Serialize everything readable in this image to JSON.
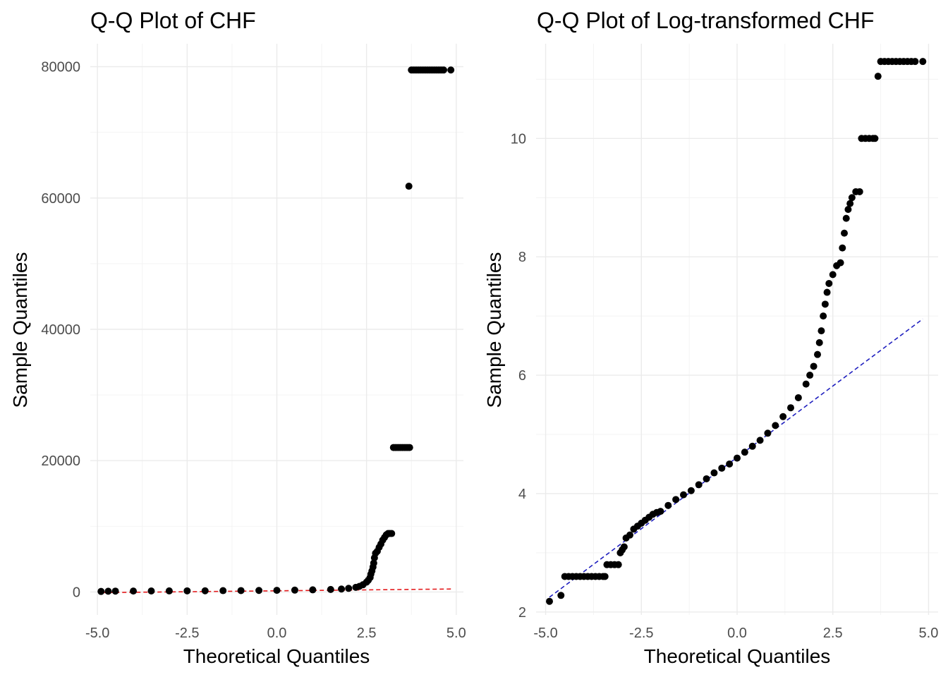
{
  "chart_data": [
    {
      "type": "scatter",
      "title": "Q-Q Plot of CHF",
      "xlabel": "Theoretical Quantiles",
      "ylabel": "Sample Quantiles",
      "xlim": [
        -5.2,
        5.2
      ],
      "ylim": [
        -3500,
        83500
      ],
      "xticks": [
        -5.0,
        -2.5,
        0.0,
        2.5,
        5.0
      ],
      "xtick_labels": [
        "-5.0",
        "-2.5",
        "0.0",
        "2.5",
        "5.0"
      ],
      "yticks": [
        0,
        20000,
        40000,
        60000,
        80000
      ],
      "ytick_labels": [
        "0",
        "20000",
        "40000",
        "60000",
        "80000"
      ],
      "grid": true,
      "reference_line": {
        "color": "#e41a1c",
        "style": "dashed",
        "points": [
          [
            -4.9,
            -100
          ],
          [
            4.85,
            450
          ]
        ]
      },
      "point_color": "#000000",
      "points": [
        [
          -4.9,
          80
        ],
        [
          -4.7,
          110
        ],
        [
          -4.5,
          130
        ],
        [
          -4.0,
          140
        ],
        [
          -3.5,
          150
        ],
        [
          -3.0,
          160
        ],
        [
          -2.5,
          170
        ],
        [
          -2.0,
          180
        ],
        [
          -1.5,
          200
        ],
        [
          -1.0,
          210
        ],
        [
          -0.5,
          230
        ],
        [
          0.0,
          250
        ],
        [
          0.5,
          280
        ],
        [
          1.0,
          320
        ],
        [
          1.5,
          380
        ],
        [
          1.8,
          450
        ],
        [
          2.0,
          550
        ],
        [
          2.2,
          700
        ],
        [
          2.3,
          850
        ],
        [
          2.4,
          1100
        ],
        [
          2.5,
          1500
        ],
        [
          2.55,
          1800
        ],
        [
          2.6,
          2200
        ],
        [
          2.62,
          2700
        ],
        [
          2.65,
          3200
        ],
        [
          2.68,
          3800
        ],
        [
          2.7,
          4400
        ],
        [
          2.72,
          5200
        ],
        [
          2.75,
          5900
        ],
        [
          2.8,
          6200
        ],
        [
          2.85,
          6800
        ],
        [
          2.9,
          7300
        ],
        [
          2.95,
          7900
        ],
        [
          3.0,
          8300
        ],
        [
          3.05,
          8700
        ],
        [
          3.1,
          8900
        ],
        [
          3.15,
          8900
        ],
        [
          3.2,
          8900
        ],
        [
          3.25,
          22000
        ],
        [
          3.3,
          22000
        ],
        [
          3.35,
          22000
        ],
        [
          3.4,
          22000
        ],
        [
          3.45,
          22000
        ],
        [
          3.5,
          22000
        ],
        [
          3.55,
          22000
        ],
        [
          3.6,
          22000
        ],
        [
          3.65,
          22000
        ],
        [
          3.7,
          22000
        ],
        [
          3.68,
          61800
        ],
        [
          3.75,
          79500
        ],
        [
          3.8,
          79500
        ],
        [
          3.85,
          79500
        ],
        [
          3.9,
          79500
        ],
        [
          3.95,
          79500
        ],
        [
          4.0,
          79500
        ],
        [
          4.05,
          79500
        ],
        [
          4.1,
          79500
        ],
        [
          4.15,
          79500
        ],
        [
          4.2,
          79500
        ],
        [
          4.25,
          79500
        ],
        [
          4.3,
          79500
        ],
        [
          4.35,
          79500
        ],
        [
          4.4,
          79500
        ],
        [
          4.45,
          79500
        ],
        [
          4.5,
          79500
        ],
        [
          4.55,
          79500
        ],
        [
          4.6,
          79500
        ],
        [
          4.65,
          79500
        ],
        [
          4.85,
          79500
        ]
      ]
    },
    {
      "type": "scatter",
      "title": "Q-Q Plot of Log-transformed CHF",
      "xlabel": "Theoretical Quantiles",
      "ylabel": "Sample Quantiles",
      "xlim": [
        -5.25,
        5.25
      ],
      "ylim": [
        1.95,
        11.6
      ],
      "xticks": [
        -5.0,
        -2.5,
        0.0,
        2.5,
        5.0
      ],
      "xtick_labels": [
        "-5.0",
        "-2.5",
        "0.0",
        "2.5",
        "5.0"
      ],
      "yticks": [
        2,
        4,
        6,
        8,
        10
      ],
      "ytick_labels": [
        "2",
        "4",
        "6",
        "8",
        "10"
      ],
      "grid": true,
      "reference_line": {
        "color": "#1f1fbf",
        "style": "dashed",
        "points": [
          [
            -4.9,
            2.25
          ],
          [
            4.85,
            6.95
          ]
        ]
      },
      "point_color": "#000000",
      "points": [
        [
          -4.9,
          2.18
        ],
        [
          -4.6,
          2.28
        ],
        [
          -4.5,
          2.6
        ],
        [
          -4.4,
          2.6
        ],
        [
          -4.3,
          2.6
        ],
        [
          -4.2,
          2.6
        ],
        [
          -4.1,
          2.6
        ],
        [
          -4.0,
          2.6
        ],
        [
          -3.9,
          2.6
        ],
        [
          -3.8,
          2.6
        ],
        [
          -3.7,
          2.6
        ],
        [
          -3.6,
          2.6
        ],
        [
          -3.5,
          2.6
        ],
        [
          -3.45,
          2.6
        ],
        [
          -3.4,
          2.8
        ],
        [
          -3.3,
          2.8
        ],
        [
          -3.2,
          2.8
        ],
        [
          -3.1,
          2.8
        ],
        [
          -3.05,
          3.0
        ],
        [
          -3.0,
          3.05
        ],
        [
          -2.95,
          3.1
        ],
        [
          -2.9,
          3.25
        ],
        [
          -2.8,
          3.3
        ],
        [
          -2.7,
          3.4
        ],
        [
          -2.6,
          3.45
        ],
        [
          -2.5,
          3.5
        ],
        [
          -2.4,
          3.55
        ],
        [
          -2.3,
          3.6
        ],
        [
          -2.2,
          3.65
        ],
        [
          -2.1,
          3.68
        ],
        [
          -2.0,
          3.7
        ],
        [
          -1.8,
          3.8
        ],
        [
          -1.6,
          3.9
        ],
        [
          -1.4,
          3.98
        ],
        [
          -1.2,
          4.05
        ],
        [
          -1.0,
          4.15
        ],
        [
          -0.8,
          4.25
        ],
        [
          -0.6,
          4.35
        ],
        [
          -0.4,
          4.43
        ],
        [
          -0.2,
          4.5
        ],
        [
          0.0,
          4.6
        ],
        [
          0.2,
          4.7
        ],
        [
          0.4,
          4.8
        ],
        [
          0.6,
          4.9
        ],
        [
          0.8,
          5.02
        ],
        [
          1.0,
          5.15
        ],
        [
          1.2,
          5.3
        ],
        [
          1.4,
          5.45
        ],
        [
          1.6,
          5.62
        ],
        [
          1.8,
          5.85
        ],
        [
          1.9,
          6.0
        ],
        [
          2.0,
          6.15
        ],
        [
          2.1,
          6.35
        ],
        [
          2.15,
          6.55
        ],
        [
          2.2,
          6.75
        ],
        [
          2.25,
          7.0
        ],
        [
          2.3,
          7.2
        ],
        [
          2.35,
          7.4
        ],
        [
          2.4,
          7.55
        ],
        [
          2.5,
          7.7
        ],
        [
          2.6,
          7.85
        ],
        [
          2.7,
          7.9
        ],
        [
          2.75,
          8.15
        ],
        [
          2.8,
          8.4
        ],
        [
          2.85,
          8.65
        ],
        [
          2.9,
          8.8
        ],
        [
          2.95,
          8.9
        ],
        [
          3.0,
          9.0
        ],
        [
          3.1,
          9.1
        ],
        [
          3.2,
          9.1
        ],
        [
          3.25,
          10.0
        ],
        [
          3.35,
          10.0
        ],
        [
          3.45,
          10.0
        ],
        [
          3.55,
          10.0
        ],
        [
          3.6,
          10.0
        ],
        [
          3.68,
          11.05
        ],
        [
          3.75,
          11.3
        ],
        [
          3.85,
          11.3
        ],
        [
          3.95,
          11.3
        ],
        [
          4.05,
          11.3
        ],
        [
          4.15,
          11.3
        ],
        [
          4.25,
          11.3
        ],
        [
          4.35,
          11.3
        ],
        [
          4.45,
          11.3
        ],
        [
          4.55,
          11.3
        ],
        [
          4.65,
          11.3
        ],
        [
          4.85,
          11.3
        ]
      ]
    }
  ]
}
